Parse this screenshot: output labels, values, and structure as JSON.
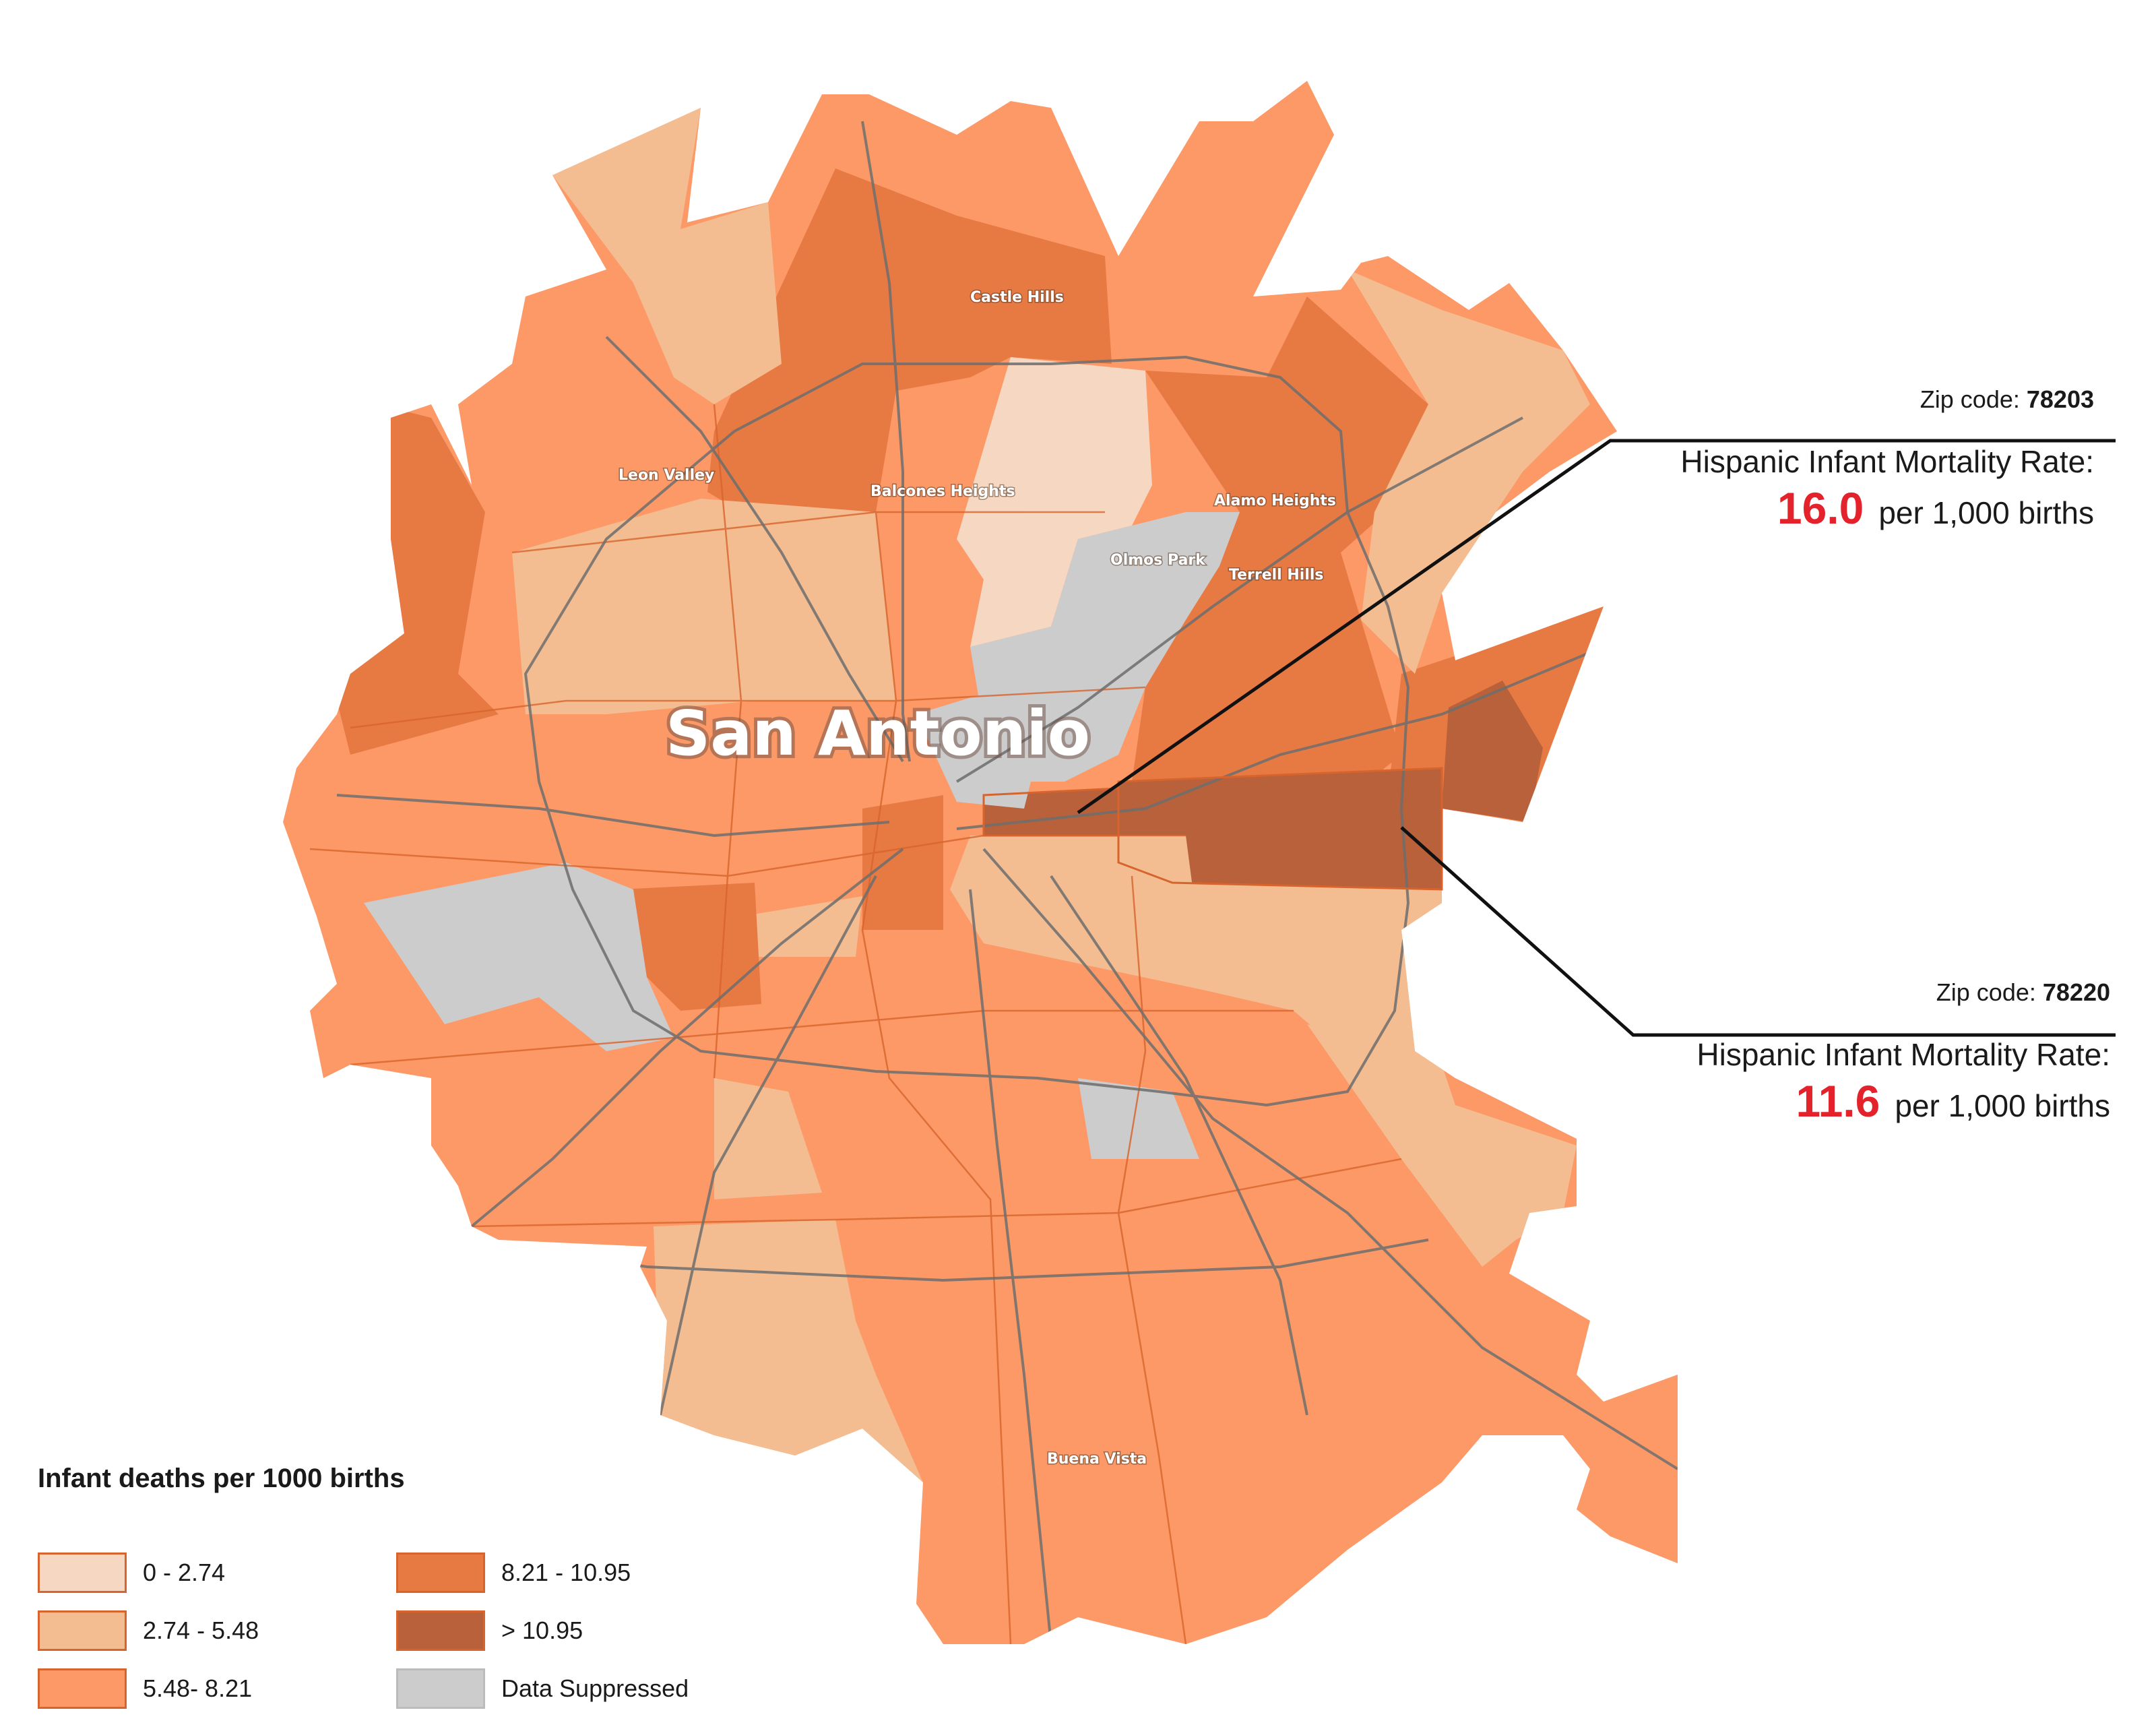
{
  "map": {
    "city_label": "San Antonio",
    "place_labels": [
      "Castle Hills",
      "Leon Valley",
      "Balcones Heights",
      "Alamo Heights",
      "Olmos Park",
      "Terrell Hills",
      "Buena Vista"
    ]
  },
  "callouts": [
    {
      "zip_label": "Zip code:",
      "zip": "78203",
      "rate_label": "Hispanic Infant Mortality Rate:",
      "rate": "16.0",
      "rate_unit": "per 1,000 births"
    },
    {
      "zip_label": "Zip code:",
      "zip": "78220",
      "rate_label": "Hispanic Infant Mortality Rate:",
      "rate": "11.6",
      "rate_unit": "per 1,000 births"
    }
  ],
  "legend": {
    "title": "Infant deaths per 1000 births",
    "items": [
      {
        "label": "0 - 2.74",
        "color": "#f6d7c1"
      },
      {
        "label": "2.74 - 5.48",
        "color": "#f3bd91"
      },
      {
        "label": "5.48- 8.21",
        "color": "#fc9967"
      },
      {
        "label": "8.21 - 10.95",
        "color": "#e77943"
      },
      {
        "label": "> 10.95",
        "color": "#b8613b"
      },
      {
        "label": "Data Suppressed",
        "color": "#cccccc"
      }
    ]
  },
  "colors": {
    "class1": "#f6d7c1",
    "class2": "#f3bd91",
    "class3": "#fc9967",
    "class4": "#e77943",
    "class5": "#b8613b",
    "suppressed": "#cccccc",
    "border": "#d7642c",
    "road": "#6e6e6e",
    "highlight_rate": "#e3222b"
  }
}
